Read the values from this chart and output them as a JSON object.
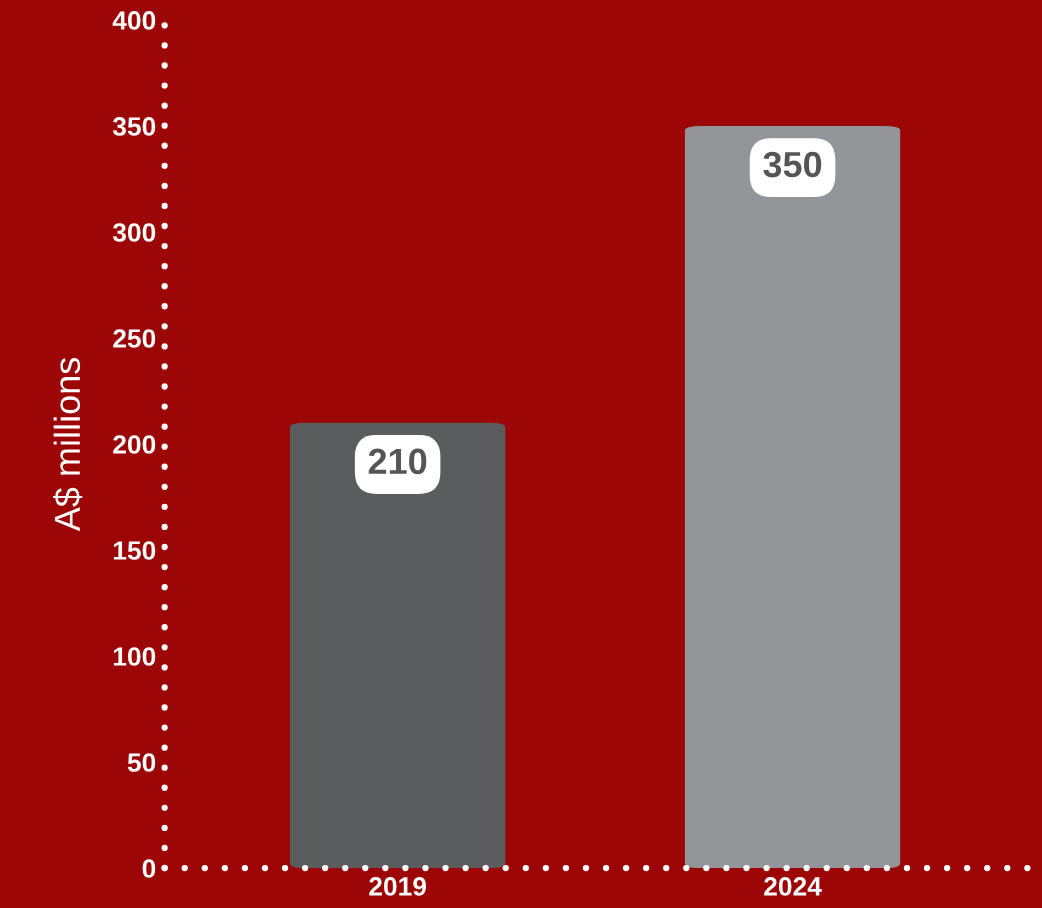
{
  "chart_data": {
    "type": "bar",
    "ylabel": "A$ millions",
    "categories": [
      "2019",
      "2024"
    ],
    "values": [
      210,
      350
    ],
    "colors": [
      "#5a5c5e",
      "#949598"
    ],
    "ylim": [
      0,
      400
    ],
    "yticks": [
      0,
      50,
      100,
      150,
      200,
      250,
      300,
      350,
      400
    ],
    "data_labels": true,
    "grid": false,
    "legend": false
  }
}
